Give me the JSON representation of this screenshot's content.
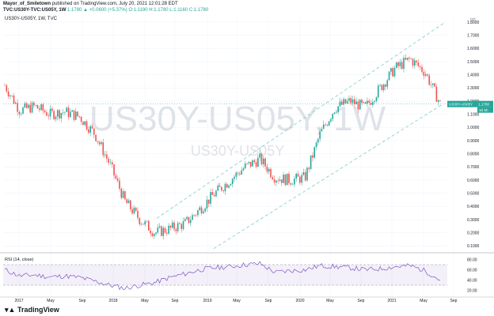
{
  "header": {
    "author": "Mayor_of_Smiletown",
    "published": "published on TradingView.com, July 20, 2021 12:01:28 EDT",
    "symbol": "TVC:US30Y-TVC:US05Y, 1W",
    "ohlc": "1.1780 ▲ +0.0600 (+5.37%) O:1.1190 H:1.1780 L:1.1160 C:1.1780"
  },
  "symbol_label": "US30Y-US05Y, 1W, TVC",
  "watermark": {
    "big": "US30Y-US05Y, 1W",
    "small": "US30Y-US05Y"
  },
  "unit_label": "pct",
  "price_tag": {
    "name": "US30Y-US05Y",
    "value": "1.1780",
    "countdown": "3d 5h"
  },
  "rsi_label": "RSI (14, close)",
  "logo": "TradingView",
  "colors": {
    "up": "#26a69a",
    "down": "#ef5350",
    "rsi": "#7e57c2",
    "channel": "#80cbc4"
  },
  "chart_data": [
    {
      "type": "line",
      "title": "US30Y-US05Y, 1W (weekly candlesticks)",
      "x_ticks": [
        "2017",
        "May",
        "Sep",
        "2018",
        "May",
        "Sep",
        "2019",
        "May",
        "Sep",
        "2020",
        "May",
        "Sep",
        "2021",
        "May",
        "Sep"
      ],
      "y_ticks": [
        "0.1000",
        "0.2000",
        "0.3000",
        "0.4000",
        "0.5000",
        "0.6000",
        "0.7000",
        "0.8000",
        "0.9000",
        "1.0000",
        "1.1000",
        "1.2000",
        "1.3000",
        "1.4000",
        "1.5000",
        "1.6000",
        "1.7000",
        "1.8000"
      ],
      "ylim": [
        0.06,
        1.86
      ],
      "x": [
        "2016-09",
        "2016-11",
        "2017-01",
        "2017-03",
        "2017-05",
        "2017-07",
        "2017-09",
        "2017-11",
        "2018-01",
        "2018-03",
        "2018-05",
        "2018-07",
        "2018-09",
        "2018-11",
        "2019-01",
        "2019-03",
        "2019-05",
        "2019-07",
        "2019-09",
        "2019-11",
        "2020-01",
        "2020-03",
        "2020-05",
        "2020-07",
        "2020-09",
        "2020-11",
        "2021-01",
        "2021-03",
        "2021-05",
        "2021-07"
      ],
      "series": [
        {
          "values": [
            1.32,
            1.13,
            1.16,
            1.1,
            1.12,
            1.08,
            0.95,
            0.72,
            0.44,
            0.3,
            0.2,
            0.23,
            0.27,
            0.38,
            0.5,
            0.6,
            0.7,
            0.76,
            0.62,
            0.6,
            0.62,
            0.95,
            1.15,
            1.2,
            1.15,
            1.3,
            1.45,
            1.52,
            1.42,
            1.18
          ]
        }
      ],
      "channel": "ascending parallel channel (dashed)",
      "grid": true
    },
    {
      "type": "line",
      "title": "RSI (14, close)",
      "y_ticks": [
        "20.00",
        "40.00",
        "60.00",
        "80.00"
      ],
      "ylim": [
        10,
        90
      ],
      "band": [
        30,
        70
      ],
      "x": [
        "2016-09",
        "2016-11",
        "2017-01",
        "2017-03",
        "2017-05",
        "2017-07",
        "2017-09",
        "2017-11",
        "2018-01",
        "2018-03",
        "2018-05",
        "2018-07",
        "2018-09",
        "2018-11",
        "2019-01",
        "2019-03",
        "2019-05",
        "2019-07",
        "2019-09",
        "2019-11",
        "2020-01",
        "2020-03",
        "2020-05",
        "2020-07",
        "2020-09",
        "2020-11",
        "2021-01",
        "2021-03",
        "2021-05",
        "2021-07"
      ],
      "series": [
        {
          "values": [
            60,
            48,
            50,
            46,
            48,
            45,
            38,
            30,
            24,
            30,
            35,
            45,
            52,
            60,
            64,
            66,
            70,
            72,
            55,
            58,
            60,
            68,
            66,
            64,
            60,
            62,
            66,
            68,
            58,
            40
          ]
        }
      ]
    }
  ]
}
